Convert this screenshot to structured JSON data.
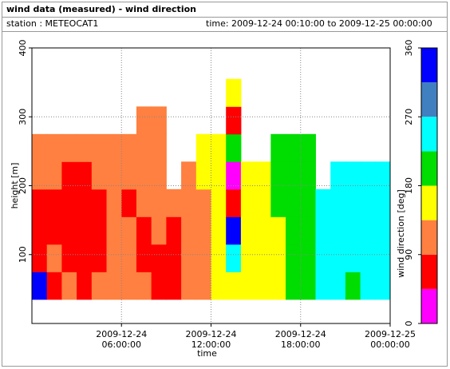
{
  "header": {
    "title": "wind data (measured) - wind direction",
    "station": "station : METEOCAT1",
    "time": "time: 2009-12-24 00:10:00 to 2009-12-25 00:00:00"
  },
  "chart_data": {
    "type": "heatmap",
    "xlabel": "time",
    "ylabel": "height [m]",
    "x": [
      0,
      1,
      2,
      3,
      4,
      5,
      6,
      7,
      8,
      9,
      10,
      11,
      12,
      13,
      14,
      15,
      16,
      17,
      18,
      19,
      20,
      21,
      22,
      23
    ],
    "y": [
      35,
      75,
      115,
      155,
      195,
      235,
      275,
      315,
      355
    ],
    "values": [
      [
        340,
        70,
        70,
        70,
        110,
        110,
        null,
        null,
        null
      ],
      [
        70,
        110,
        70,
        70,
        110,
        110,
        null,
        null,
        null
      ],
      [
        110,
        70,
        70,
        70,
        70,
        110,
        null,
        null,
        null
      ],
      [
        70,
        70,
        70,
        70,
        70,
        110,
        null,
        null,
        null
      ],
      [
        110,
        70,
        70,
        70,
        110,
        110,
        null,
        null,
        null
      ],
      [
        110,
        110,
        110,
        110,
        110,
        110,
        null,
        null,
        null
      ],
      [
        110,
        110,
        110,
        70,
        110,
        110,
        null,
        null,
        null
      ],
      [
        110,
        70,
        70,
        110,
        110,
        110,
        110,
        null,
        null
      ],
      [
        70,
        70,
        110,
        110,
        110,
        110,
        110,
        null,
        null
      ],
      [
        70,
        70,
        70,
        110,
        null,
        null,
        null,
        null,
        null
      ],
      [
        110,
        110,
        110,
        110,
        110,
        null,
        null,
        null,
        null
      ],
      [
        110,
        110,
        110,
        110,
        160,
        160,
        null,
        null,
        null
      ],
      [
        160,
        160,
        160,
        160,
        160,
        160,
        null,
        null,
        null
      ],
      [
        160,
        250,
        340,
        70,
        20,
        200,
        70,
        160,
        null
      ],
      [
        160,
        160,
        160,
        160,
        160,
        null,
        null,
        null,
        null
      ],
      [
        160,
        160,
        160,
        160,
        160,
        null,
        null,
        null,
        null
      ],
      [
        160,
        160,
        160,
        200,
        200,
        200,
        null,
        null,
        null
      ],
      [
        200,
        200,
        200,
        200,
        200,
        200,
        null,
        null,
        null
      ],
      [
        200,
        200,
        200,
        200,
        200,
        200,
        null,
        null,
        null
      ],
      [
        250,
        250,
        250,
        250,
        null,
        null,
        null,
        null,
        null
      ],
      [
        250,
        250,
        250,
        250,
        250,
        null,
        null,
        null,
        null
      ],
      [
        200,
        250,
        250,
        250,
        250,
        null,
        null,
        null,
        null
      ],
      [
        250,
        250,
        250,
        250,
        250,
        null,
        null,
        null,
        null
      ],
      [
        250,
        250,
        250,
        250,
        250,
        null,
        null,
        null,
        null
      ]
    ],
    "xlim": [
      0,
      24
    ],
    "xticks": [
      {
        "value": 6,
        "label": "2009-12-24 06:00:00"
      },
      {
        "value": 12,
        "label": "2009-12-24 12:00:00"
      },
      {
        "value": 18,
        "label": "2009-12-24 18:00:00"
      },
      {
        "value": 24,
        "label": "2009-12-25 00:00:00"
      }
    ],
    "ylim": [
      0,
      400
    ],
    "yticks": [
      100,
      200,
      300,
      400
    ],
    "grid": true,
    "colorbar": {
      "label": "wind direction [deg]",
      "lim": [
        0,
        360
      ],
      "ticks": [
        0,
        90,
        180,
        270,
        360
      ],
      "colors": [
        "#ff00ff",
        "#ff0000",
        "#ff8040",
        "#ffff00",
        "#00dd00",
        "#00ffff",
        "#4080c0",
        "#0000ff"
      ]
    }
  }
}
